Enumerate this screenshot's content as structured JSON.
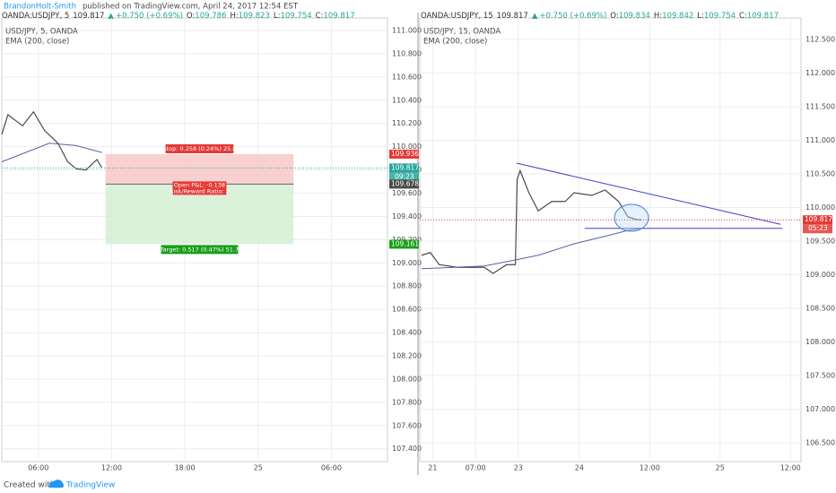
{
  "header": {
    "author": "BrandonHolt-Smith",
    "published": "published on TradingView.com, April 24, 2017 12:54 EST"
  },
  "footer": {
    "created": "Created with",
    "brand": "TradingView"
  },
  "chart_data": [
    {
      "type": "line",
      "title": "OANDA:USDJPY, 5",
      "last": "109.817",
      "change": "+0.750 (+0.69%)",
      "ohlc": [
        {
          "key": "O:",
          "value": "109.786"
        },
        {
          "key": "H:",
          "value": "109.823"
        },
        {
          "key": "L:",
          "value": "109.754"
        },
        {
          "key": "C:",
          "value": "109.817"
        }
      ],
      "xlim": [
        3,
        34.6
      ],
      "ylim": [
        107.29,
        111.108
      ],
      "grid": true,
      "xticks": [
        {
          "value": 6,
          "label": "06:00"
        },
        {
          "value": 12,
          "label": "12:00"
        },
        {
          "value": 18,
          "label": "18:00"
        },
        {
          "value": 24,
          "label": "25"
        },
        {
          "value": 30,
          "label": "06:00"
        }
      ],
      "yticks": [
        {
          "value": 111,
          "label": "111.000"
        },
        {
          "value": 110.8,
          "label": "110.800"
        },
        {
          "value": 110.6,
          "label": "110.600"
        },
        {
          "value": 110.4,
          "label": "110.400"
        },
        {
          "value": 110.2,
          "label": "110.200"
        },
        {
          "value": 110,
          "label": "110.000"
        },
        {
          "value": 109.8,
          "label": "109.800"
        },
        {
          "value": 109.6,
          "label": "109.600"
        },
        {
          "value": 109.4,
          "label": "109.400"
        },
        {
          "value": 109.2,
          "label": "109.200"
        },
        {
          "value": 109,
          "label": "109.000"
        },
        {
          "value": 108.8,
          "label": "108.800"
        },
        {
          "value": 108.6,
          "label": "108.600"
        },
        {
          "value": 108.4,
          "label": "108.400"
        },
        {
          "value": 108.2,
          "label": "108.200"
        },
        {
          "value": 108,
          "label": "108.000"
        },
        {
          "value": 107.8,
          "label": "107.800"
        },
        {
          "value": 107.6,
          "label": "107.600"
        },
        {
          "value": 107.4,
          "label": "107.400"
        }
      ],
      "series": [
        {
          "name": "USD/JPY, 5, OANDA",
          "color": "#4a4a4a",
          "x": [
            3.0,
            3.5,
            4.7,
            5.6,
            6.5,
            7.6,
            8.4,
            9.1,
            9.9,
            10.8,
            11.2
          ],
          "values": [
            110.106,
            110.275,
            110.18,
            110.3,
            110.14,
            110.03,
            109.87,
            109.81,
            109.8,
            109.89,
            109.817
          ]
        },
        {
          "name": "EMA (200, close)",
          "color": "#5b5fa8",
          "x": [
            3.0,
            6.9,
            9.1,
            11.2
          ],
          "values": [
            109.87,
            110.03,
            110.01,
            109.95
          ]
        }
      ],
      "position": {
        "x": [
          11.5,
          26.9
        ],
        "stop": 109.936,
        "entry": 109.678,
        "target": 109.161,
        "stop_label": "Stop: 0.258 (0.24%) 25.8",
        "pnl_label": "Open P&L: -0.138",
        "ratio_label": "Risk/Reward Ratio: 2",
        "target_label": "Target: 0.517 (0.47%) 51.7"
      },
      "price_labels": [
        {
          "value": 109.936,
          "color": "#e53935"
        },
        {
          "value": 109.817,
          "color": "#26a69a",
          "countdown": "09:23"
        },
        {
          "value": 109.678,
          "color": "#4a4a4a"
        },
        {
          "value": 109.161,
          "color": "#1a9e1a"
        }
      ],
      "trendlines": []
    },
    {
      "type": "line",
      "title": "OANDA:USDJPY, 15",
      "last": "109.817",
      "change": "+0.750 (+0.69%)",
      "ohlc": [
        {
          "key": "O:",
          "value": "109.834"
        },
        {
          "key": "H:",
          "value": "109.842"
        },
        {
          "key": "L:",
          "value": "109.754"
        },
        {
          "key": "C:",
          "value": "109.817"
        }
      ],
      "xlim": [
        -27.2,
        37.8
      ],
      "ylim": [
        106.22,
        112.82
      ],
      "grid": true,
      "xticks": [
        {
          "value": -25,
          "label": "21"
        },
        {
          "value": -17.7,
          "label": "07:00"
        },
        {
          "value": -10.4,
          "label": "23"
        },
        {
          "value": 0,
          "label": "24"
        },
        {
          "value": 12,
          "label": "12:00"
        },
        {
          "value": 24,
          "label": "25"
        },
        {
          "value": 36,
          "label": "12:00"
        }
      ],
      "yticks": [
        {
          "value": 112.5,
          "label": "112.500"
        },
        {
          "value": 112,
          "label": "112.000"
        },
        {
          "value": 111.5,
          "label": "111.500"
        },
        {
          "value": 111,
          "label": "111.000"
        },
        {
          "value": 110.5,
          "label": "110.500"
        },
        {
          "value": 110,
          "label": "110.000"
        },
        {
          "value": 109.5,
          "label": "109.500"
        },
        {
          "value": 109,
          "label": "109.000"
        },
        {
          "value": 108.5,
          "label": "108.500"
        },
        {
          "value": 108,
          "label": "108.000"
        },
        {
          "value": 107.5,
          "label": "107.500"
        },
        {
          "value": 107,
          "label": "107.000"
        },
        {
          "value": 106.5,
          "label": "106.500"
        }
      ],
      "series": [
        {
          "name": "USD/JPY, 15, OANDA",
          "color": "#4a4a4a",
          "x": [
            -26.9,
            -25.4,
            -23.9,
            -20.8,
            -16.2,
            -14.7,
            -12.4,
            -10.9,
            -10.6,
            -10.1,
            -8.6,
            -7.0,
            -4.7,
            -2.4,
            -0.9,
            2.1,
            4.4,
            6.7,
            8.3,
            9.8,
            10.6
          ],
          "values": [
            109.29,
            109.33,
            109.15,
            109.11,
            109.11,
            109.02,
            109.15,
            109.15,
            110.42,
            110.55,
            110.22,
            109.95,
            110.09,
            110.09,
            110.22,
            110.18,
            110.26,
            110.09,
            109.86,
            109.82,
            109.817
          ]
        },
        {
          "name": "EMA (200, close)",
          "color": "#5b5fa8",
          "x": [
            -26.9,
            -16.2,
            -10.9,
            -7.0,
            -0.9,
            5.2,
            8.3,
            10.6
          ],
          "values": [
            109.09,
            109.13,
            109.22,
            109.29,
            109.46,
            109.59,
            109.66,
            109.69
          ]
        }
      ],
      "price_labels": [
        {
          "value": 109.817,
          "color": "#e53935",
          "countdown": "05:23"
        }
      ],
      "trendlines": [
        {
          "color": "#3f3fc8",
          "x": [
            -10.7,
            34.3
          ],
          "y": [
            110.66,
            109.75
          ]
        },
        {
          "color": "#3f3fc8",
          "x": [
            0.9,
            34.6
          ],
          "y": [
            109.69,
            109.69
          ]
        }
      ]
    }
  ]
}
